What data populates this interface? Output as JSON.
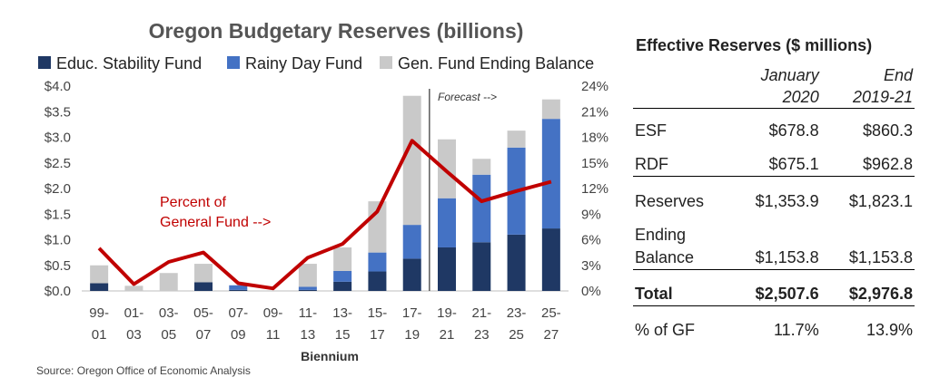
{
  "chart_data": {
    "type": "bar",
    "stacked": true,
    "title": "Oregon Budgetary Reserves (billions)",
    "xlabel": "Biennium",
    "ylabel_left": "",
    "ylim": [
      0,
      4.0
    ],
    "y_ticks": [
      "$0.0",
      "$0.5",
      "$1.0",
      "$1.5",
      "$2.0",
      "$2.5",
      "$3.0",
      "$3.5",
      "$4.0"
    ],
    "y2lim": [
      0,
      24
    ],
    "y2_ticks": [
      "0%",
      "3%",
      "6%",
      "9%",
      "12%",
      "15%",
      "18%",
      "21%",
      "24%"
    ],
    "categories": [
      [
        "99-",
        "01"
      ],
      [
        "01-",
        "03"
      ],
      [
        "03-",
        "05"
      ],
      [
        "05-",
        "07"
      ],
      [
        "07-",
        "09"
      ],
      [
        "09-",
        "11"
      ],
      [
        "11-",
        "13"
      ],
      [
        "13-",
        "15"
      ],
      [
        "15-",
        "17"
      ],
      [
        "17-",
        "19"
      ],
      [
        "19-",
        "21"
      ],
      [
        "21-",
        "23"
      ],
      [
        "23-",
        "25"
      ],
      [
        "25-",
        "27"
      ]
    ],
    "series": [
      {
        "name": "Educ. Stability Fund",
        "color": "#1f3864",
        "values": [
          0.15,
          0.0,
          0.0,
          0.17,
          0.02,
          0.0,
          0.02,
          0.18,
          0.38,
          0.63,
          0.85,
          0.95,
          1.1,
          1.22
        ]
      },
      {
        "name": "Rainy Day Fund",
        "color": "#4472c4",
        "values": [
          0.0,
          0.0,
          0.0,
          0.0,
          0.09,
          0.0,
          0.06,
          0.21,
          0.37,
          0.66,
          0.96,
          1.32,
          1.7,
          2.14
        ]
      },
      {
        "name": "Gen. Fund Ending Balance",
        "color": "#c9c9c9",
        "values": [
          0.35,
          0.1,
          0.35,
          0.36,
          0.0,
          0.0,
          0.45,
          0.46,
          1.0,
          2.52,
          1.15,
          0.31,
          0.33,
          0.38
        ]
      }
    ],
    "line": {
      "name": "Percent of General Fund",
      "color": "#c00000",
      "axis": "right",
      "values": [
        5.0,
        0.8,
        3.4,
        4.5,
        0.9,
        0.3,
        3.9,
        5.5,
        9.3,
        17.6,
        14.0,
        10.5,
        11.7,
        12.8
      ]
    },
    "annotations": {
      "percent_label_line1": "Percent of",
      "percent_label_line2": "General Fund -->",
      "forecast": "Forecast -->"
    },
    "forecast_divider_after_index": 9,
    "legend_position": "top"
  },
  "source": "Source: Oregon Office of Economic Analysis",
  "table": {
    "title": "Effective Reserves ($ millions)",
    "col1_line1": "January",
    "col1_line2": "2020",
    "col2_line1": "End",
    "col2_line2": "2019-21",
    "rows": {
      "esf": {
        "label": "ESF",
        "v1": "$678.8",
        "v2": "$860.3"
      },
      "rdf": {
        "label": "RDF",
        "v1": "$675.1",
        "v2": "$962.8"
      },
      "reserves": {
        "label": "Reserves",
        "v1": "$1,353.9",
        "v2": "$1,823.1"
      },
      "ending": {
        "label1": "Ending",
        "label2": "Balance",
        "v1": "$1,153.8",
        "v2": "$1,153.8"
      },
      "total": {
        "label": "Total",
        "v1": "$2,507.6",
        "v2": "$2,976.8"
      },
      "gf": {
        "label": "% of GF",
        "v1": "11.7%",
        "v2": "13.9%"
      }
    }
  }
}
